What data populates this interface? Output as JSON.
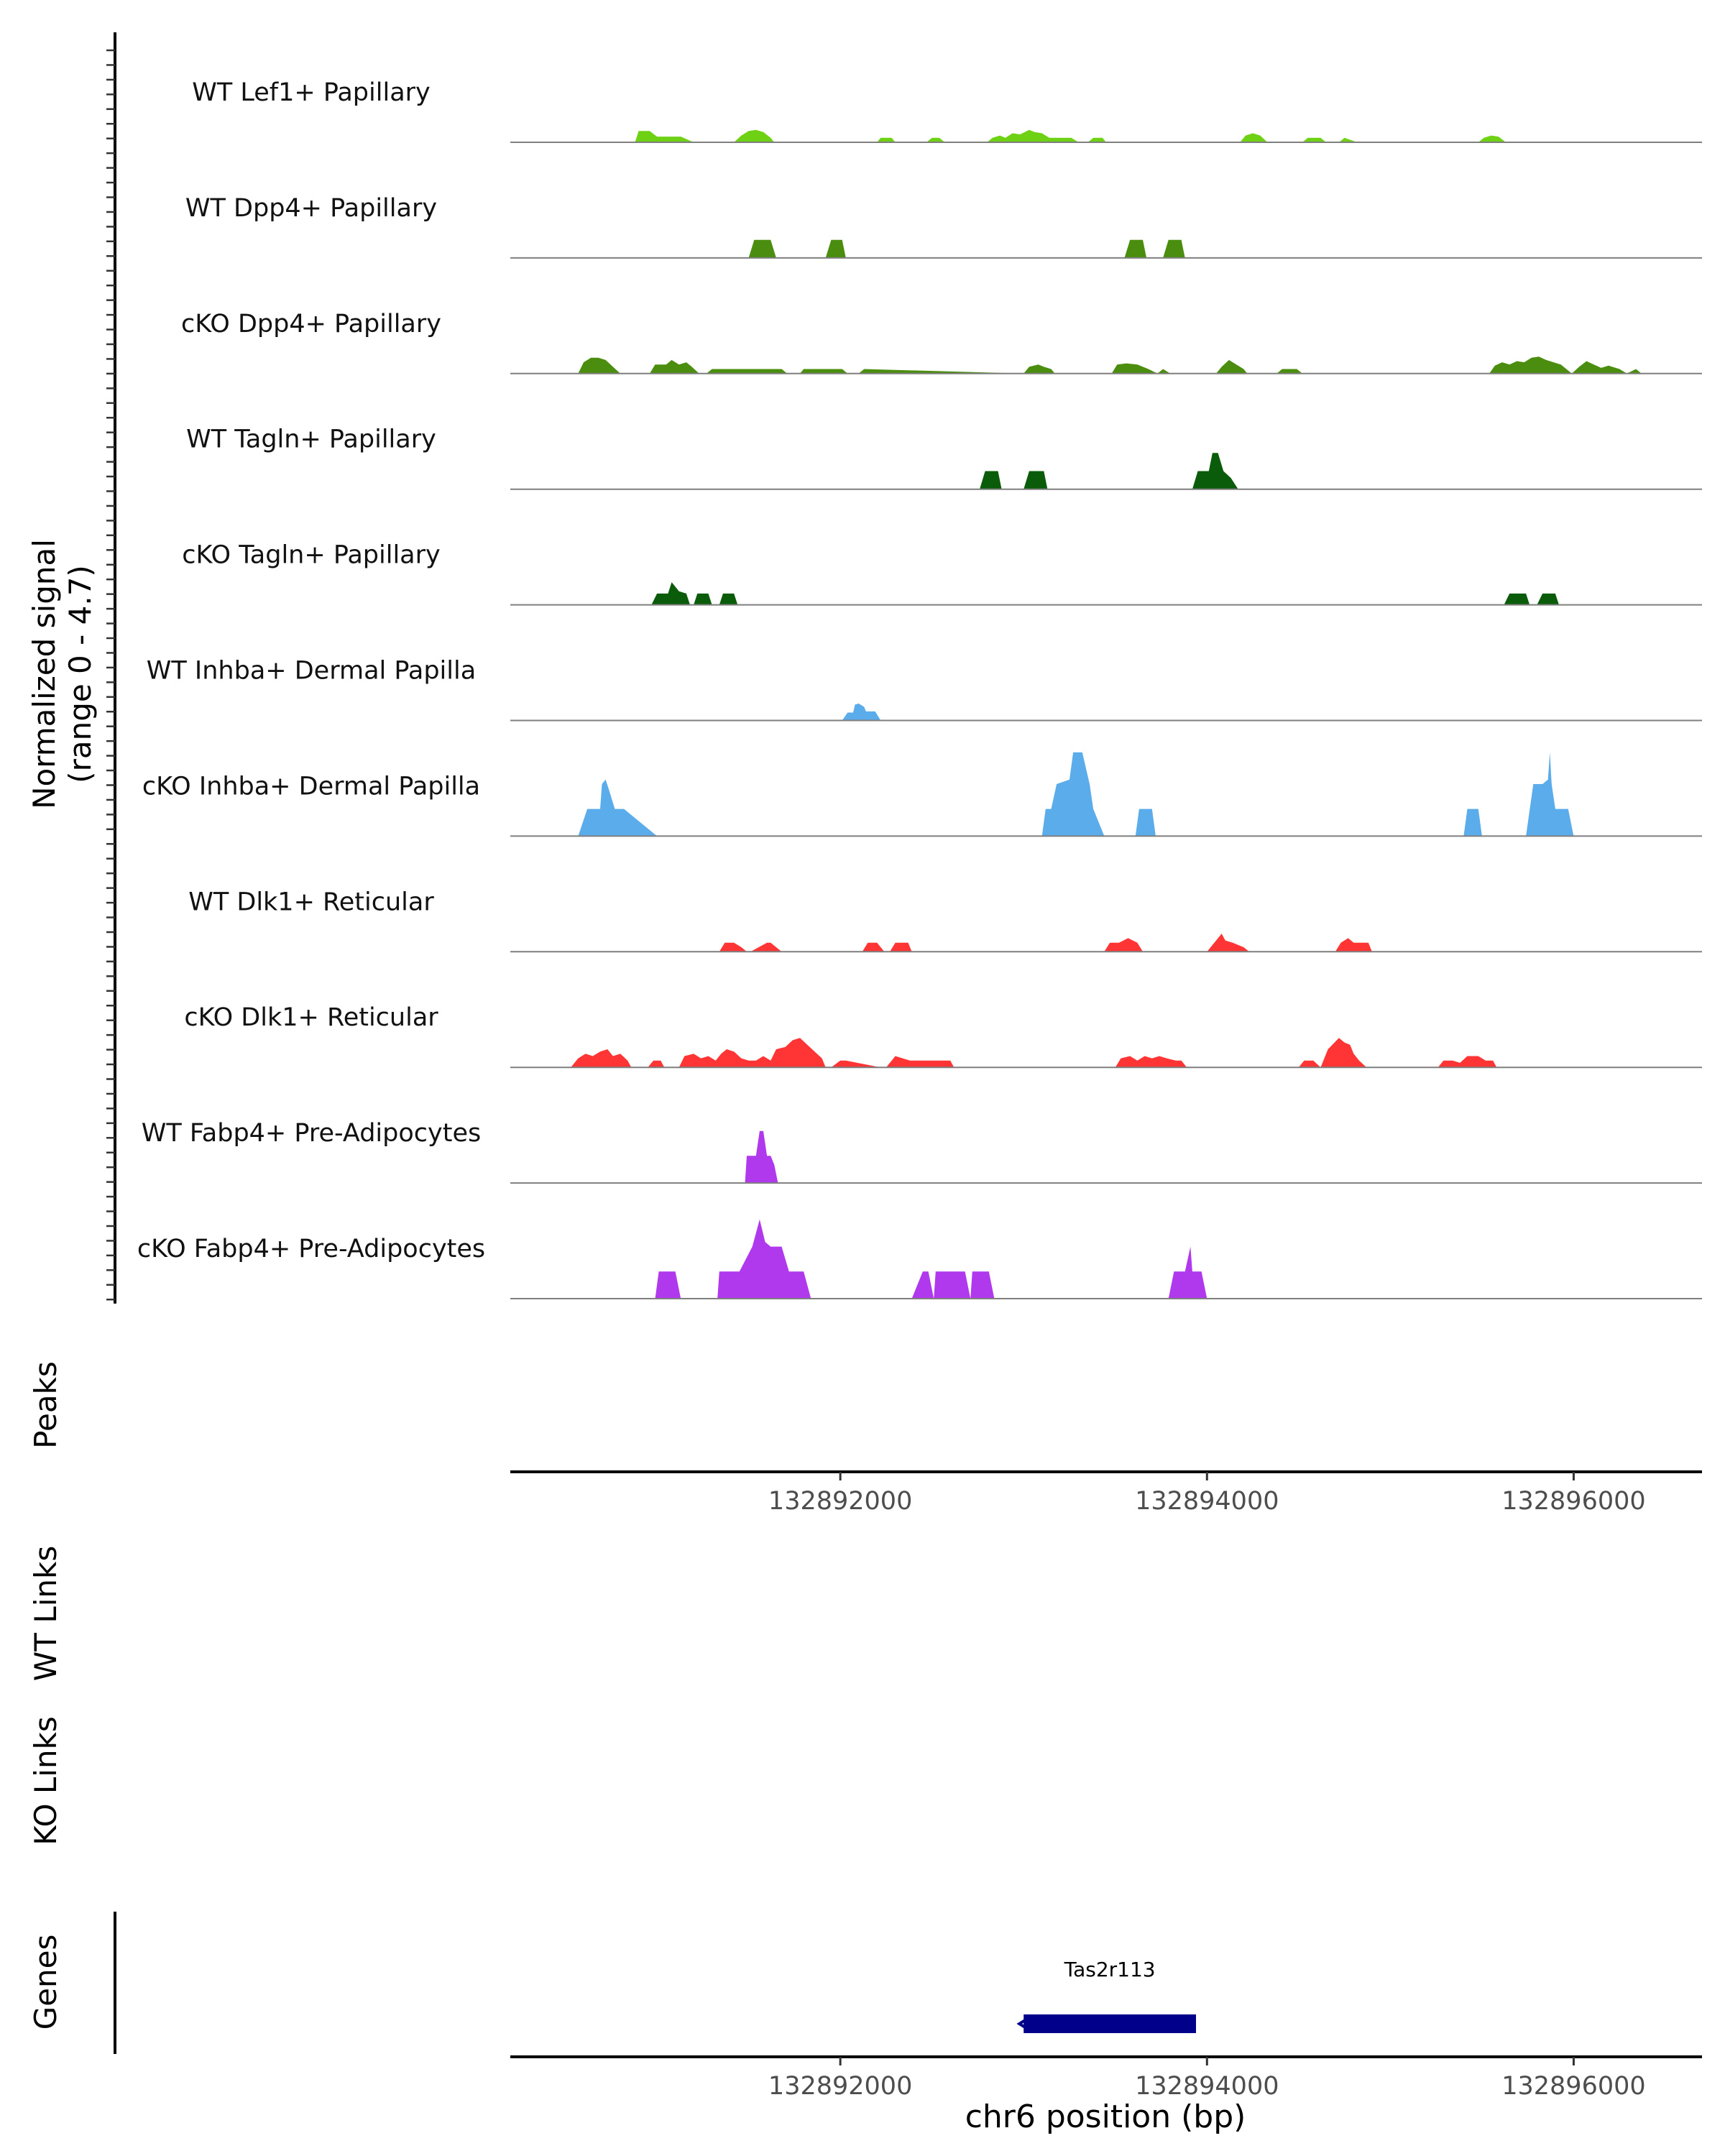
{
  "chart_data": {
    "type": "area",
    "title": "",
    "xlabel": "chr6 position (bp)",
    "ylabel": "Normalized signal",
    "ylabel_range": "(range 0 - 4.7)",
    "xlim": [
      132890200,
      132896700
    ],
    "ylim": [
      0,
      4.7
    ],
    "x_ticks": [
      132892000,
      132894000,
      132896000
    ],
    "x_tick_labels": [
      "132892000",
      "132894000",
      "132896000"
    ],
    "tracks": [
      {
        "name": "WT Lef1+ Papillary",
        "color": "#6fd114",
        "x": [
          132890880,
          132890900,
          132890960,
          132891000,
          132891040,
          132891060,
          132891100,
          132891130,
          132891200,
          132891420,
          132891460,
          132891500,
          132891540,
          132891580,
          132891620,
          132891640,
          132892200,
          132892220,
          132892280,
          132892300,
          132892470,
          132892500,
          132892540,
          132892570,
          132892800,
          132892830,
          132892870,
          132892900,
          132892940,
          132892980,
          132893030,
          132893060,
          132893100,
          132893140,
          132893180,
          132893220,
          132893260,
          132893300,
          132893350,
          132893380,
          132893430,
          132893450,
          132894180,
          132894210,
          132894250,
          132894290,
          132894330,
          132894520,
          132894550,
          132894620,
          132894650,
          132894720,
          132894750,
          132894820,
          132895480,
          132895510,
          132895550,
          132895590,
          132895630
        ],
        "y": [
          0,
          0.5,
          0.5,
          0.25,
          0.25,
          0.25,
          0.25,
          0.25,
          0,
          0,
          0.3,
          0.5,
          0.55,
          0.45,
          0.2,
          0,
          0,
          0.2,
          0.2,
          0,
          0,
          0.2,
          0.2,
          0,
          0,
          0.2,
          0.3,
          0.2,
          0.4,
          0.35,
          0.55,
          0.45,
          0.4,
          0.2,
          0.2,
          0.2,
          0.2,
          0,
          0,
          0.2,
          0.2,
          0,
          0,
          0.3,
          0.4,
          0.3,
          0,
          0,
          0.2,
          0.2,
          0,
          0,
          0.2,
          0,
          0,
          0.2,
          0.3,
          0.25,
          0
        ]
      },
      {
        "name": "WT Dpp4+ Papillary",
        "color": "#4a8d0f",
        "x": [
          132891500,
          132891530,
          132891620,
          132891650,
          132891920,
          132891950,
          132892010,
          132892030,
          132893550,
          132893580,
          132893650,
          132893670,
          132893760,
          132893790,
          132893860,
          132893880
        ],
        "y": [
          0,
          0.8,
          0.8,
          0,
          0,
          0.8,
          0.8,
          0,
          0,
          0.8,
          0.8,
          0,
          0,
          0.8,
          0.8,
          0
        ]
      },
      {
        "name": "cKO Dpp4+ Papillary",
        "color": "#4a8d0f",
        "x": [
          132890570,
          132890600,
          132890640,
          132890680,
          132890720,
          132890760,
          132890800,
          132890840,
          132890960,
          132890990,
          132891050,
          132891080,
          132891120,
          132891160,
          132891190,
          132891230,
          132891270,
          132891300,
          132891680,
          132891710,
          132891780,
          132891800,
          132892010,
          132892040,
          132892100,
          132892130,
          132893000,
          132893030,
          132893080,
          132893110,
          132893150,
          132893170,
          132893480,
          132893510,
          132893560,
          132893620,
          132893680,
          132893730,
          132893760,
          132893800,
          132893900,
          132894050,
          132894080,
          132894120,
          132894160,
          132894200,
          132894220,
          132894380,
          132894410,
          132894490,
          132894520,
          132895540,
          132895570,
          132895610,
          132895650,
          132895690,
          132895730,
          132895770,
          132895810,
          132895850,
          132895890,
          132895930,
          132895990,
          132896030,
          132896070,
          132896110,
          132896150,
          132896190,
          132896250,
          132896290,
          132896340,
          132896370
        ],
        "y": [
          0,
          0.5,
          0.7,
          0.7,
          0.6,
          0.3,
          0,
          0,
          0,
          0.4,
          0.4,
          0.6,
          0.4,
          0.5,
          0.3,
          0,
          0,
          0.2,
          0.2,
          0,
          0,
          0.2,
          0.2,
          0,
          0,
          0.2,
          0,
          0.3,
          0.4,
          0.3,
          0.2,
          0,
          0,
          0.4,
          0.45,
          0.4,
          0.2,
          0,
          0.2,
          0,
          0,
          0,
          0.3,
          0.6,
          0.4,
          0.2,
          0,
          0,
          0.2,
          0.2,
          0,
          0,
          0.35,
          0.5,
          0.4,
          0.55,
          0.5,
          0.7,
          0.75,
          0.6,
          0.5,
          0.4,
          0,
          0.3,
          0.55,
          0.4,
          0.25,
          0.35,
          0.2,
          0,
          0.2,
          0
        ]
      },
      {
        "name": "WT Tagln+ Papillary",
        "color": "#0a5c0a",
        "x": [
          132892760,
          132892790,
          132892860,
          132892880,
          132893000,
          132893030,
          132893110,
          132893130,
          132893920,
          132893950,
          132894010,
          132894030,
          132894060,
          132894090,
          132894130,
          132894170
        ],
        "y": [
          0,
          0.8,
          0.8,
          0,
          0,
          0.8,
          0.8,
          0,
          0,
          0.8,
          0.8,
          1.6,
          1.6,
          0.8,
          0.5,
          0
        ]
      },
      {
        "name": "cKO Tagln+ Papillary",
        "color": "#0a5c0a",
        "x": [
          132890970,
          132891000,
          132891060,
          132891080,
          132891100,
          132891120,
          132891160,
          132891180,
          132891200,
          132891220,
          132891280,
          132891300,
          132891340,
          132891360,
          132891420,
          132891440,
          132895620,
          132895650,
          132895740,
          132895760,
          132895800,
          132895830,
          132895900,
          132895920
        ],
        "y": [
          0,
          0.5,
          0.5,
          1.0,
          0.8,
          0.6,
          0.5,
          0,
          0,
          0.5,
          0.5,
          0,
          0,
          0.5,
          0.5,
          0,
          0,
          0.5,
          0.5,
          0,
          0,
          0.5,
          0.5,
          0
        ]
      },
      {
        "name": "WT Inhba+ Dermal Papilla",
        "color": "#5aacea",
        "x": [
          132892010,
          132892040,
          132892070,
          132892080,
          132892100,
          132892130,
          132892140,
          132892190,
          132892220
        ],
        "y": [
          0,
          0.35,
          0.35,
          0.7,
          0.75,
          0.6,
          0.4,
          0.4,
          0
        ]
      },
      {
        "name": "cKO Inhba+ Dermal Papilla",
        "color": "#5aacea",
        "x": [
          132890570,
          132890620,
          132890690,
          132890700,
          132890720,
          132890740,
          132890770,
          132890820,
          132891000,
          132891050,
          132893100,
          132893120,
          132893150,
          132893180,
          132893250,
          132893270,
          132893320,
          132893360,
          132893380,
          132893440,
          132893610,
          132893630,
          132893700,
          132893720,
          132895400,
          132895420,
          132895480,
          132895500,
          132895740,
          132895780,
          132895830,
          132895860,
          132895870,
          132895880,
          132895900,
          132895970,
          132896000
        ],
        "y": [
          0,
          1.2,
          1.2,
          2.3,
          2.5,
          2.0,
          1.2,
          1.2,
          0,
          0,
          0,
          1.2,
          1.2,
          2.3,
          2.5,
          3.7,
          3.7,
          2.3,
          1.2,
          0,
          0,
          1.2,
          1.2,
          0,
          0,
          1.2,
          1.2,
          0,
          0,
          2.3,
          2.3,
          2.5,
          3.7,
          2.3,
          1.2,
          1.2,
          0
        ]
      },
      {
        "name": "WT Dlk1+ Reticular",
        "color": "#ff3434",
        "x": [
          132891340,
          132891370,
          132891420,
          132891460,
          132891490,
          132891510,
          132891600,
          132891620,
          132891680,
          132891700,
          132892120,
          132892150,
          132892200,
          132892240,
          132892270,
          132892300,
          132892370,
          132892390,
          132893440,
          132893470,
          132893520,
          132893570,
          132893620,
          132893650,
          132894000,
          132894040,
          132894080,
          132894100,
          132894140,
          132894200,
          132894230,
          132894700,
          132894730,
          132894770,
          132894800,
          132894880,
          132894900
        ],
        "y": [
          0,
          0.4,
          0.4,
          0.2,
          0,
          0,
          0.4,
          0.4,
          0,
          0,
          0,
          0.4,
          0.4,
          0,
          0,
          0.4,
          0.4,
          0,
          0,
          0.4,
          0.4,
          0.6,
          0.4,
          0,
          0,
          0.4,
          0.8,
          0.5,
          0.4,
          0.2,
          0,
          0,
          0.4,
          0.6,
          0.4,
          0.4,
          0
        ]
      },
      {
        "name": "cKO Dlk1+ Reticular",
        "color": "#ff3434",
        "x": [
          132890530,
          132890570,
          132890610,
          132890650,
          132890690,
          132890730,
          132890760,
          132890800,
          132890840,
          132890860,
          132890950,
          132890980,
          132891020,
          132891040,
          132891120,
          132891150,
          132891200,
          132891240,
          132891280,
          132891320,
          132891350,
          132891380,
          132891420,
          132891460,
          132891500,
          132891540,
          132891580,
          132891620,
          132891650,
          132891700,
          132891740,
          132891780,
          132891820,
          132891860,
          132891900,
          132891920,
          132891950,
          132892000,
          132892030,
          132892220,
          132892250,
          132892300,
          132892340,
          132892380,
          132892420,
          132892450,
          132892600,
          132892620,
          132893500,
          132893530,
          132893580,
          132893620,
          132893660,
          132893700,
          132893740,
          132893780,
          132893830,
          132893860,
          132893890,
          132894500,
          132894530,
          132894580,
          132894620,
          132894660,
          132894720,
          132894750,
          132894780,
          132894800,
          132894830,
          132894870,
          132895260,
          132895290,
          132895340,
          132895380,
          132895420,
          132895480,
          132895520,
          132895560,
          132895580
        ],
        "y": [
          0,
          0.4,
          0.6,
          0.5,
          0.7,
          0.8,
          0.5,
          0.6,
          0.3,
          0,
          0,
          0.3,
          0.3,
          0,
          0,
          0.5,
          0.6,
          0.4,
          0.5,
          0.3,
          0.6,
          0.8,
          0.7,
          0.4,
          0.3,
          0.3,
          0.5,
          0.3,
          0.8,
          0.9,
          1.2,
          1.3,
          1.0,
          0.7,
          0.4,
          0,
          0,
          0.3,
          0.3,
          0,
          0,
          0.5,
          0.4,
          0.3,
          0.3,
          0.3,
          0.3,
          0,
          0,
          0.4,
          0.5,
          0.3,
          0.5,
          0.4,
          0.5,
          0.4,
          0.3,
          0.3,
          0,
          0,
          0.3,
          0.3,
          0,
          0.8,
          1.3,
          1.1,
          1.0,
          0.6,
          0.3,
          0,
          0,
          0.3,
          0.3,
          0.2,
          0.5,
          0.5,
          0.3,
          0.3,
          0
        ]
      },
      {
        "name": "WT Fabp4+ Pre-Adipocytes",
        "color": "#b039ee",
        "x": [
          132891480,
          132891490,
          132891510,
          132891520,
          132891540,
          132891560,
          132891580,
          132891600,
          132891620,
          132891640,
          132891660
        ],
        "y": [
          0,
          1.2,
          1.2,
          1.2,
          1.2,
          2.3,
          2.3,
          1.2,
          1.2,
          0.8,
          0
        ]
      },
      {
        "name": "cKO Fabp4+ Pre-Adipocytes",
        "color": "#b039ee",
        "x": [
          132890990,
          132891010,
          132891100,
          132891130,
          132891330,
          132891340,
          132891450,
          132891520,
          132891540,
          132891560,
          132891590,
          132891620,
          132891680,
          132891720,
          132891800,
          132891840,
          132892390,
          132892450,
          132892480,
          132892510,
          132892520,
          132892680,
          132892710,
          132892720,
          132892810,
          132892840,
          132893790,
          132893820,
          132893880,
          132893910,
          132893920,
          132893970,
          132894000
        ],
        "y": [
          0,
          1.2,
          1.2,
          0,
          0,
          1.2,
          1.2,
          2.3,
          2.9,
          3.5,
          2.5,
          2.3,
          2.3,
          1.2,
          1.2,
          0,
          0,
          1.2,
          1.2,
          0,
          1.2,
          1.2,
          0,
          1.2,
          1.2,
          0,
          0,
          1.2,
          1.2,
          2.3,
          1.2,
          1.2,
          0
        ]
      }
    ],
    "section_labels": {
      "peaks": "Peaks",
      "wt_links": "WT Links",
      "ko_links": "KO Links",
      "genes": "Genes"
    },
    "genes": [
      {
        "name": "Tas2r113",
        "start": 132893000,
        "end": 132893940,
        "strand": "-"
      }
    ]
  }
}
